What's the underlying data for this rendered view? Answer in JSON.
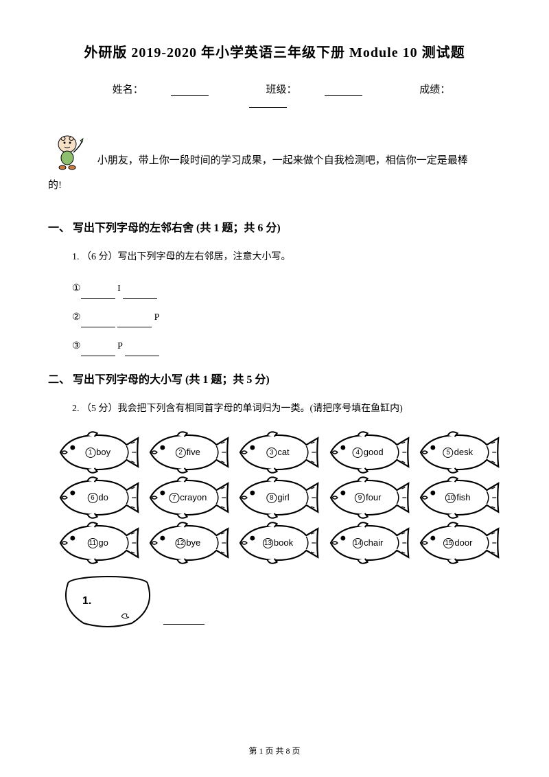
{
  "title": "外研版 2019-2020 年小学英语三年级下册 Module 10 测试题",
  "info": {
    "name_label": "姓名：",
    "class_label": "班级：",
    "score_label": "成绩："
  },
  "intro": {
    "line1": "小朋友，带上你一段时间的学习成果，一起来做个自我检测吧，相信你一定是最棒",
    "line2": "的!"
  },
  "section1": {
    "header": "一、 写出下列字母的左邻右舍 (共 1 题；共 6 分)",
    "q1": "1. （6 分）写出下列字母的左右邻居，注意大小写。",
    "item1": "①",
    "item1_letter": " I ",
    "item2": "②",
    "item2_letter": " P",
    "item3": "③",
    "item3_letter": " P "
  },
  "section2": {
    "header": "二、 写出下列字母的大小写 (共 1 题；共 5 分)",
    "q2": "2. （5 分）我会把下列含有相同首字母的单词归为一类。(请把序号填在鱼缸内)"
  },
  "fish": [
    [
      {
        "n": "1",
        "t": "boy"
      },
      {
        "n": "2",
        "t": "five"
      },
      {
        "n": "3",
        "t": "cat"
      },
      {
        "n": "4",
        "t": "good"
      },
      {
        "n": "5",
        "t": "desk"
      }
    ],
    [
      {
        "n": "6",
        "t": "do"
      },
      {
        "n": "7",
        "t": "crayon"
      },
      {
        "n": "8",
        "t": "girl"
      },
      {
        "n": "9",
        "t": "four"
      },
      {
        "n": "10",
        "t": "fish"
      }
    ],
    [
      {
        "n": "11",
        "t": "go"
      },
      {
        "n": "12",
        "t": "bye"
      },
      {
        "n": "13",
        "t": "book"
      },
      {
        "n": "14",
        "t": "chair"
      },
      {
        "n": "15",
        "t": "door"
      }
    ]
  ],
  "bowl_label": "1.",
  "footer": "第 1 页 共 8 页",
  "colors": {
    "text": "#000000",
    "background": "#ffffff",
    "stroke": "#000000"
  }
}
